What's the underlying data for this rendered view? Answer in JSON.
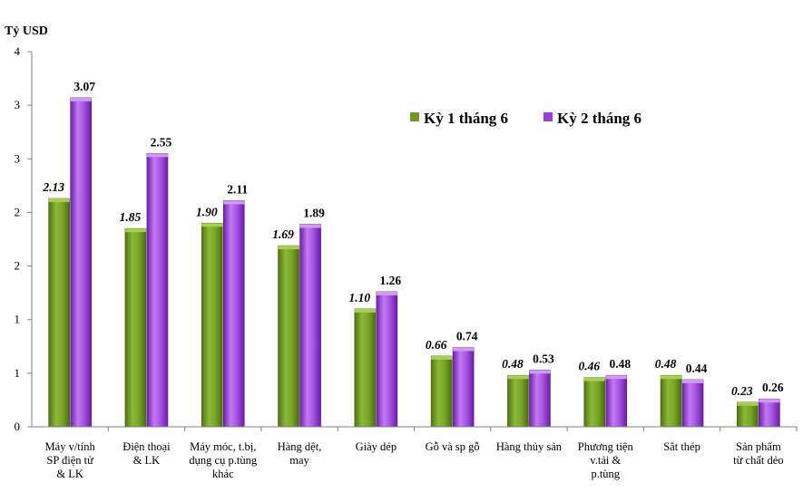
{
  "chart_data": {
    "type": "bar",
    "ylabel": "Tỷ USD",
    "y_tick_labels": [
      "0",
      "1",
      "1",
      "2",
      "2",
      "3",
      "3",
      "4"
    ],
    "ylim": [
      0,
      3.5
    ],
    "grid": false,
    "legend_position": "top-right",
    "categories": [
      [
        "Máy v/tính",
        "SP điện tử",
        "& LK"
      ],
      [
        "Điện thoại",
        "& LK"
      ],
      [
        "Máy móc, t.bị,",
        "dụng cụ p.tùng",
        "khác"
      ],
      [
        "Hàng dệt,",
        "may"
      ],
      [
        "Giày dép"
      ],
      [
        "Gỗ và sp gỗ"
      ],
      [
        "Hàng thủy sản"
      ],
      [
        "Phương tiện",
        "v.tải &",
        "p.tùng"
      ],
      [
        "Sắt thép"
      ],
      [
        "Sản phẩm",
        "từ chất dẻo"
      ]
    ],
    "series": [
      {
        "name": "Kỳ 1 tháng 6",
        "color": "#6f9a1f",
        "values": [
          2.13,
          1.85,
          1.9,
          1.69,
          1.1,
          0.66,
          0.48,
          0.46,
          0.48,
          0.23
        ],
        "labels": [
          "2.13",
          "1.85",
          "1.90",
          "1.69",
          "1.10",
          "0.66",
          "0.48",
          "0.46",
          "0.48",
          "0.23"
        ]
      },
      {
        "name": "Kỳ 2 tháng 6",
        "color": "#9b3fd6",
        "values": [
          3.07,
          2.55,
          2.11,
          1.89,
          1.26,
          0.74,
          0.53,
          0.48,
          0.44,
          0.26
        ],
        "labels": [
          "3.07",
          "2.55",
          "2.11",
          "1.89",
          "1.26",
          "0.74",
          "0.53",
          "0.48",
          "0.44",
          "0.26"
        ]
      }
    ]
  }
}
